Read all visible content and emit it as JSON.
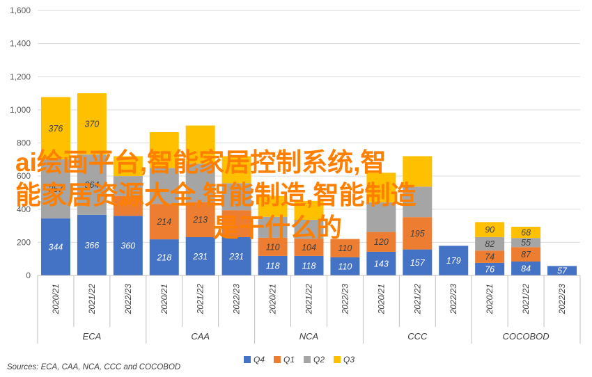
{
  "chart_data": {
    "type": "bar",
    "stacked": true,
    "ylim": [
      0,
      1600
    ],
    "yticks": [
      "0",
      "200",
      "400",
      "600",
      "800",
      "1,000",
      "1,200",
      "1,400",
      "1,600"
    ],
    "grid": true,
    "legend_position": "bottom",
    "categories": [
      {
        "group": "ECA",
        "year": "2020/21"
      },
      {
        "group": "ECA",
        "year": "2021/22"
      },
      {
        "group": "ECA",
        "year": "2022/23"
      },
      {
        "group": "CAA",
        "year": "2020/21"
      },
      {
        "group": "CAA",
        "year": "2021/22"
      },
      {
        "group": "CAA",
        "year": "2022/23"
      },
      {
        "group": "NCA",
        "year": "2020/21"
      },
      {
        "group": "NCA",
        "year": "2021/22"
      },
      {
        "group": "NCA",
        "year": "2022/23"
      },
      {
        "group": "CCC",
        "year": "2020/21"
      },
      {
        "group": "CCC",
        "year": "2021/22"
      },
      {
        "group": "CCC",
        "year": "2022/23"
      },
      {
        "group": "COCOBOD",
        "year": "2020/21"
      },
      {
        "group": "COCOBOD",
        "year": "2021/22"
      },
      {
        "group": "COCOBOD",
        "year": "2022/23"
      }
    ],
    "groups": [
      "ECA",
      "CAA",
      "NCA",
      "CCC",
      "COCOBOD"
    ],
    "series": [
      {
        "name": "Q4",
        "color": "#4472C4",
        "label_color": "#FFFFFF",
        "values": [
          344,
          366,
          360,
          218,
          231,
          231,
          118,
          118,
          110,
          143,
          157,
          179,
          76,
          84,
          57
        ]
      },
      {
        "name": "Q1",
        "color": "#ED7D31",
        "label_color": "#404040",
        "values": [
          null,
          null,
          null,
          214,
          213,
          null,
          110,
          104,
          110,
          120,
          195,
          null,
          74,
          87,
          null
        ]
      },
      {
        "name": "Q2",
        "color": "#A5A5A5",
        "label_color": "#404040",
        "values": [
          357,
          364,
          null,
          null,
          null,
          null,
          null,
          null,
          null,
          null,
          null,
          null,
          82,
          55,
          null
        ]
      },
      {
        "name": "Q3",
        "color": "#FFC000",
        "label_color": "#404040",
        "values": [
          376,
          370,
          null,
          null,
          null,
          null,
          null,
          null,
          null,
          null,
          null,
          null,
          90,
          68,
          null
        ]
      }
    ],
    "hidden_segments": [
      {
        "category_index": 2,
        "total": 720
      },
      {
        "category_index": 3,
        "total": 865
      },
      {
        "category_index": 4,
        "total": 905
      },
      {
        "category_index": 5,
        "total": 720
      },
      {
        "category_index": 6,
        "total": 480
      },
      {
        "category_index": 7,
        "total": 450
      },
      {
        "category_index": 9,
        "total": 620
      },
      {
        "category_index": 10,
        "total": 720
      }
    ],
    "source": "Sources: ECA, CAA, NCA, CCC and COCOBOD"
  },
  "overlay": {
    "line1": "ai绘画平台,智能家居控制系统,智",
    "line2": "能家居资源大全,智能制造,智能制造",
    "line3": "是干什么的"
  }
}
